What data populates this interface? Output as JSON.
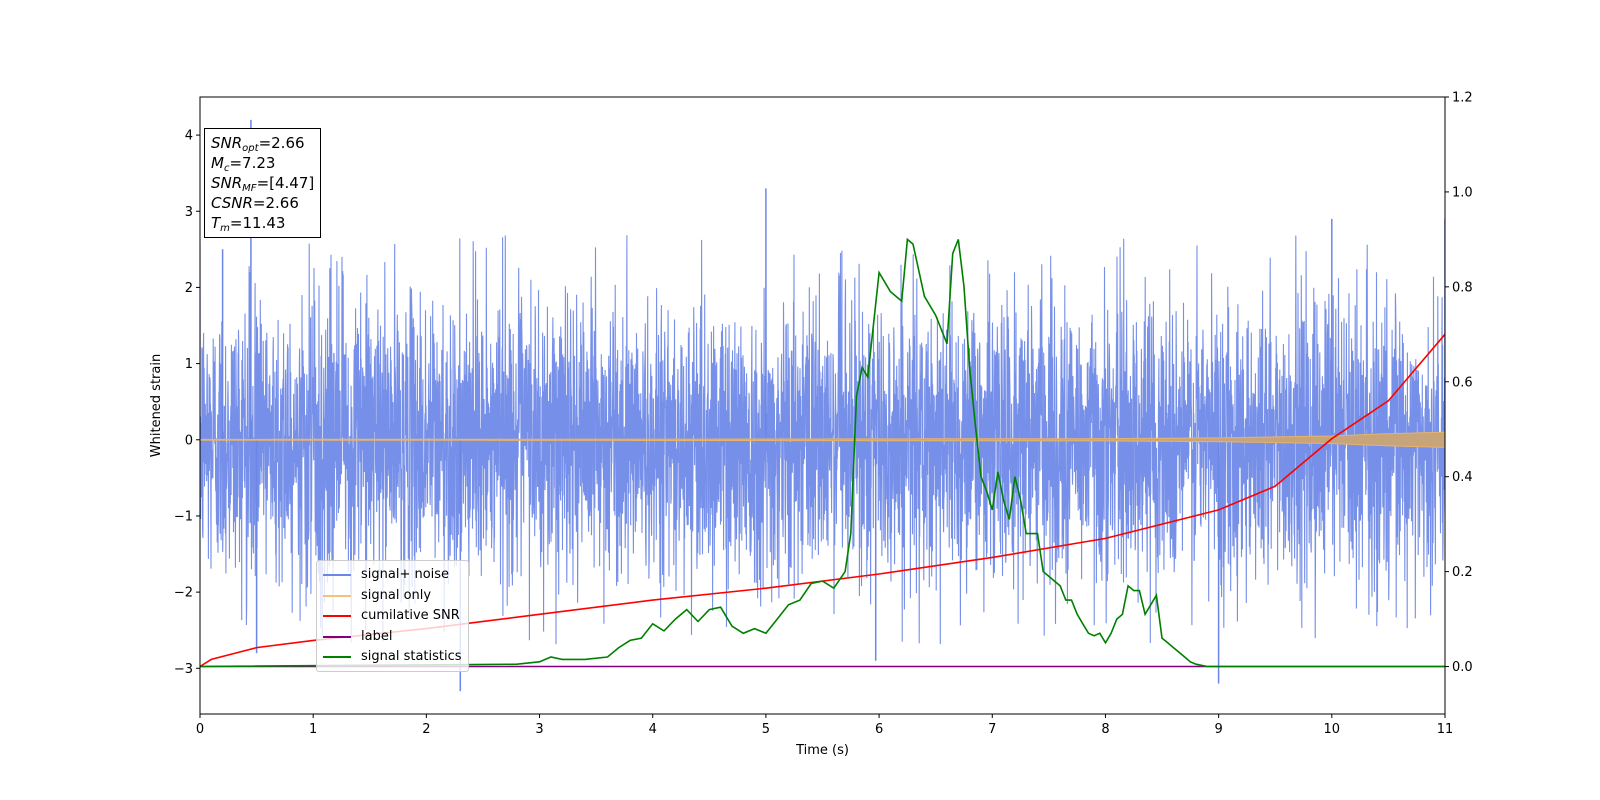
{
  "chart_data": {
    "type": "line",
    "xlabel": "Time (s)",
    "ylabel": "Whitened strain",
    "xlim": [
      0,
      11
    ],
    "ylim": [
      -3.6,
      4.5
    ],
    "y2lim": [
      -0.1,
      1.2
    ],
    "x_ticks": [
      "0",
      "1",
      "2",
      "3",
      "4",
      "5",
      "6",
      "7",
      "8",
      "9",
      "10",
      "11"
    ],
    "y_ticks": [
      "−3",
      "−2",
      "−1",
      "0",
      "1",
      "2",
      "3",
      "4"
    ],
    "y_tick_values": [
      -3,
      -2,
      -1,
      0,
      1,
      2,
      3,
      4
    ],
    "y2_ticks": [
      "0.0",
      "0.2",
      "0.4",
      "0.6",
      "0.8",
      "1.0",
      "1.2"
    ],
    "y2_tick_values": [
      0.0,
      0.2,
      0.4,
      0.6,
      0.8,
      1.0,
      1.2
    ],
    "legend_location": "lower-left",
    "series": [
      {
        "name": "signal+ noise",
        "axis": "left",
        "color": "#6a86e6",
        "description": "whitened noise, approx zero mean, unit variance",
        "sample_points": [
          [
            0.0,
            0.2
          ],
          [
            0.2,
            2.5
          ],
          [
            0.45,
            4.2
          ],
          [
            0.5,
            -2.8
          ],
          [
            2.3,
            -3.3
          ],
          [
            5.0,
            3.3
          ],
          [
            5.97,
            -2.9
          ],
          [
            9.0,
            -3.2
          ],
          [
            10.0,
            2.9
          ],
          [
            11.0,
            2.9
          ]
        ]
      },
      {
        "name": "signal only",
        "axis": "left",
        "color": "#f5c27a",
        "description": "chirp signal, amplitude growing near end",
        "amplitude_points": [
          [
            0,
            0.005
          ],
          [
            5,
            0.01
          ],
          [
            8,
            0.015
          ],
          [
            9,
            0.025
          ],
          [
            10,
            0.05
          ],
          [
            10.5,
            0.08
          ],
          [
            11,
            0.1
          ]
        ]
      },
      {
        "name": "cumilative SNR",
        "axis": "right",
        "color": "#ff0000",
        "x": [
          0.0,
          0.1,
          0.5,
          1.0,
          2.0,
          3.0,
          4.0,
          5.0,
          6.0,
          7.0,
          8.0,
          9.0,
          9.5,
          10.0,
          10.5,
          11.0
        ],
        "y": [
          0.0,
          0.015,
          0.04,
          0.055,
          0.08,
          0.11,
          0.14,
          0.165,
          0.195,
          0.23,
          0.27,
          0.33,
          0.38,
          0.48,
          0.56,
          0.7
        ]
      },
      {
        "name": "label",
        "axis": "right",
        "color": "#800080",
        "x": [
          0,
          11
        ],
        "y": [
          0.0,
          0.0
        ]
      },
      {
        "name": "signal statistics",
        "axis": "right",
        "color": "#008000",
        "x": [
          0.0,
          2.8,
          3.0,
          3.1,
          3.2,
          3.4,
          3.6,
          3.7,
          3.8,
          3.9,
          4.0,
          4.1,
          4.2,
          4.3,
          4.4,
          4.5,
          4.6,
          4.7,
          4.8,
          4.9,
          5.0,
          5.1,
          5.2,
          5.3,
          5.4,
          5.5,
          5.6,
          5.7,
          5.75,
          5.8,
          5.85,
          5.9,
          6.0,
          6.1,
          6.2,
          6.25,
          6.3,
          6.4,
          6.5,
          6.6,
          6.65,
          6.7,
          6.75,
          6.8,
          6.85,
          6.9,
          6.95,
          7.0,
          7.05,
          7.1,
          7.15,
          7.2,
          7.25,
          7.3,
          7.35,
          7.4,
          7.45,
          7.5,
          7.55,
          7.6,
          7.65,
          7.7,
          7.75,
          7.8,
          7.85,
          7.9,
          7.95,
          8.0,
          8.05,
          8.1,
          8.15,
          8.2,
          8.25,
          8.3,
          8.35,
          8.4,
          8.45,
          8.5,
          8.55,
          8.6,
          8.65,
          8.7,
          8.75,
          8.8,
          8.9,
          9.0,
          9.1,
          9.3,
          9.5,
          9.7,
          10.0,
          11.0
        ],
        "y": [
          0.0,
          0.005,
          0.01,
          0.02,
          0.015,
          0.015,
          0.02,
          0.04,
          0.055,
          0.06,
          0.09,
          0.075,
          0.1,
          0.12,
          0.095,
          0.12,
          0.125,
          0.085,
          0.07,
          0.08,
          0.07,
          0.1,
          0.13,
          0.14,
          0.175,
          0.18,
          0.165,
          0.2,
          0.28,
          0.57,
          0.63,
          0.61,
          0.83,
          0.79,
          0.77,
          0.9,
          0.89,
          0.78,
          0.74,
          0.68,
          0.87,
          0.9,
          0.8,
          0.63,
          0.51,
          0.4,
          0.37,
          0.33,
          0.41,
          0.35,
          0.31,
          0.4,
          0.35,
          0.28,
          0.28,
          0.28,
          0.2,
          0.19,
          0.18,
          0.17,
          0.14,
          0.14,
          0.11,
          0.09,
          0.07,
          0.065,
          0.07,
          0.05,
          0.07,
          0.1,
          0.11,
          0.17,
          0.16,
          0.16,
          0.11,
          0.13,
          0.15,
          0.06,
          0.05,
          0.04,
          0.03,
          0.02,
          0.01,
          0.005,
          0.0,
          0.0,
          0.0,
          0.0,
          0.0,
          0.0,
          0.0,
          0.0
        ]
      }
    ]
  },
  "info_box": {
    "snr_opt_label": "SNR",
    "snr_opt_sub": "opt",
    "snr_opt_value": "=2.66",
    "mc_label": "M",
    "mc_sub": "c",
    "mc_value": "=7.23",
    "snr_mf_label": "SNR",
    "snr_mf_sub": "MF",
    "snr_mf_value": "=[4.47]",
    "csnr_label": "CSNR",
    "csnr_value": "=2.66",
    "tm_label": "T",
    "tm_sub": "m",
    "tm_value": "=11.43"
  },
  "legend": {
    "items": [
      {
        "label": "signal+ noise",
        "color": "#6a86e6"
      },
      {
        "label": "signal only",
        "color": "#f5c27a"
      },
      {
        "label": "cumilative SNR",
        "color": "#ff0000"
      },
      {
        "label": "label",
        "color": "#800080"
      },
      {
        "label": "signal statistics",
        "color": "#008000"
      }
    ]
  }
}
